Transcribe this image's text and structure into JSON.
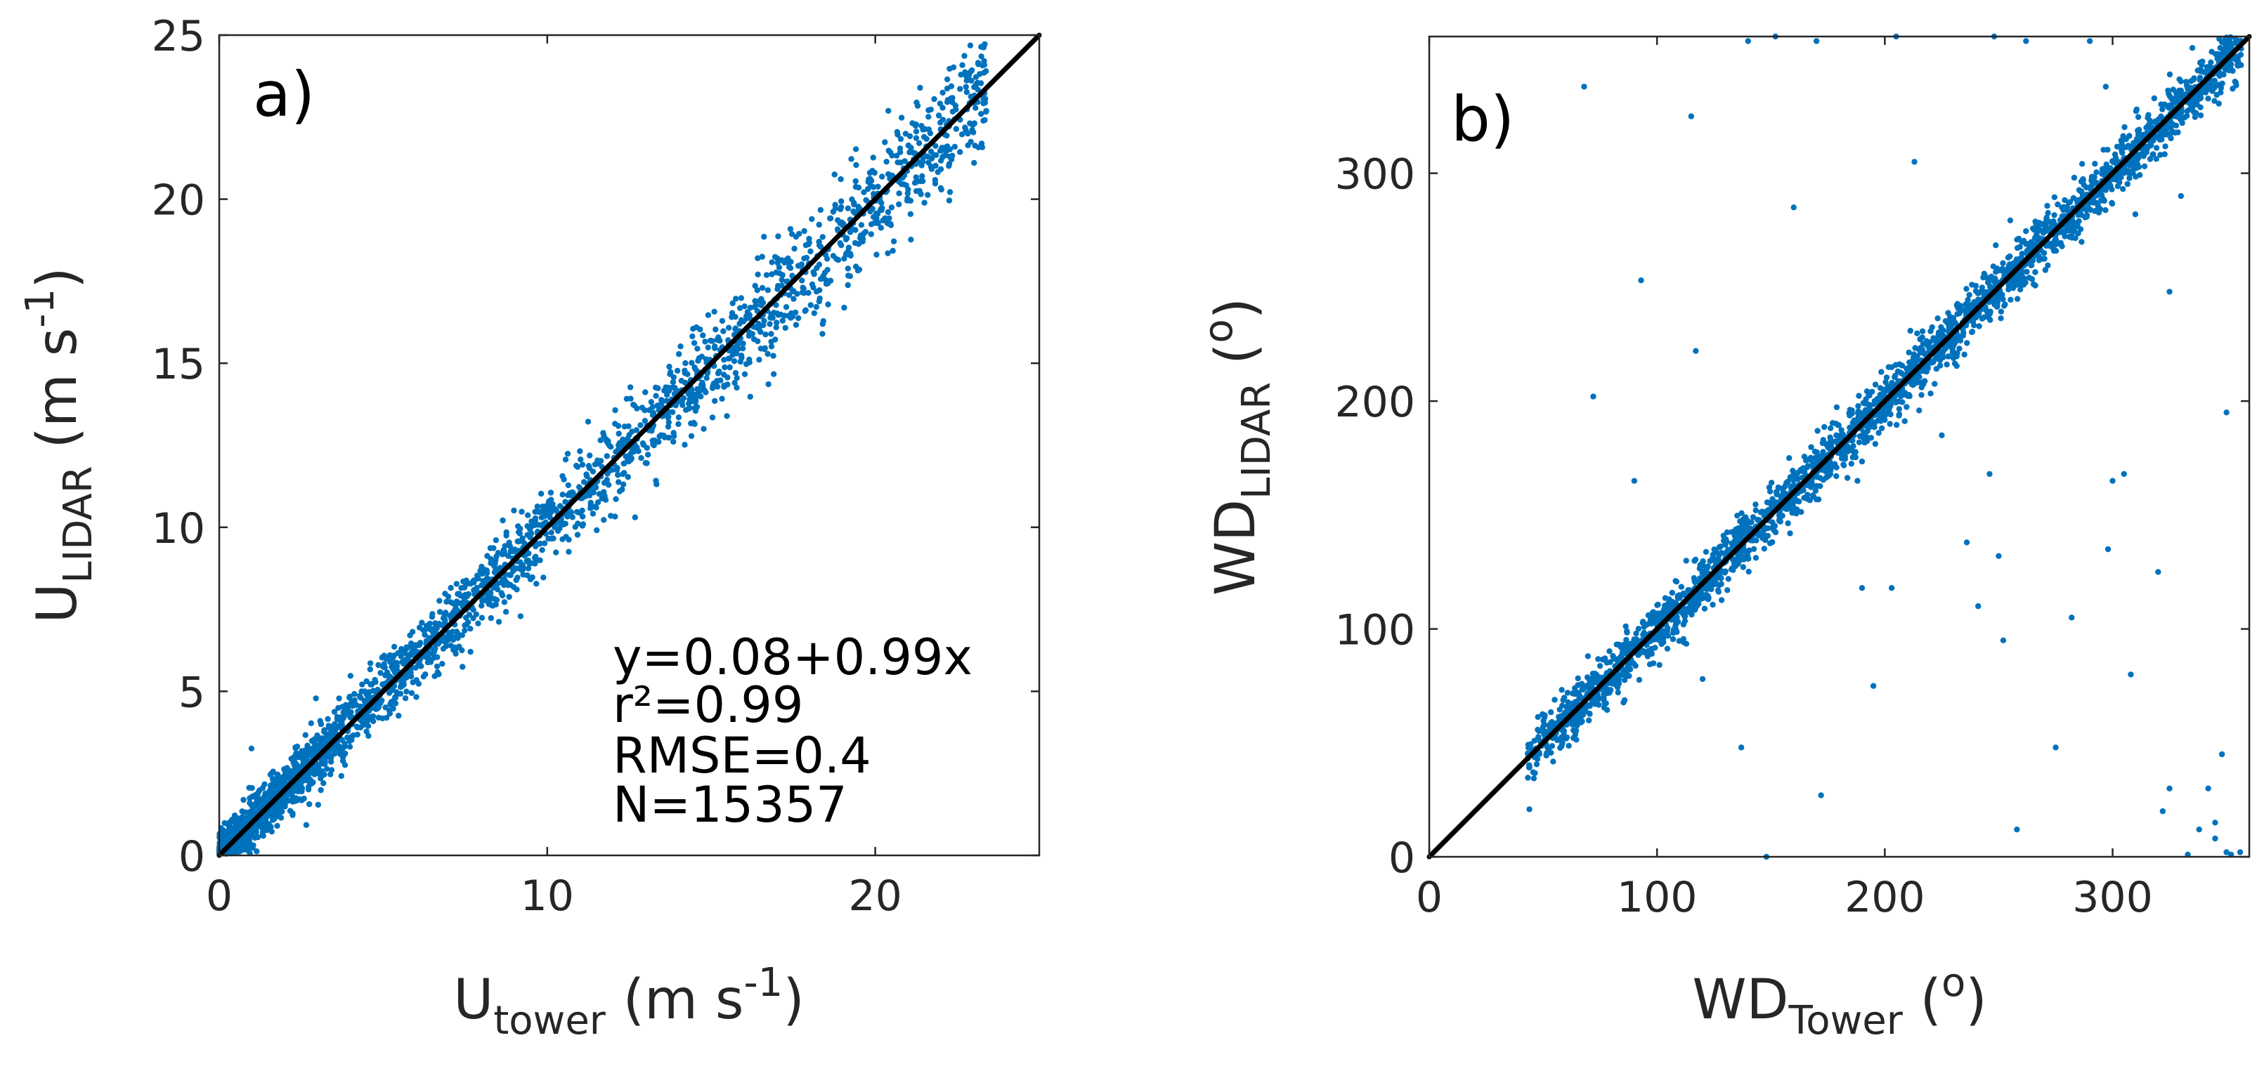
{
  "figure": {
    "marker_color": "#0072BD",
    "line_color": "#000000",
    "axis_color": "#262626"
  },
  "chart_data": [
    {
      "type": "scatter",
      "panel_label": "a)",
      "xlabel": {
        "main": "U",
        "sub": "tower",
        "unit_open": " (m s",
        "unit_sup": "-1",
        "unit_close": ")"
      },
      "ylabel": {
        "main": "U",
        "sub": "LIDAR",
        "unit_open": " (m s",
        "unit_sup": "-1",
        "unit_close": ")"
      },
      "xlim": [
        0,
        25
      ],
      "ylim": [
        0,
        25
      ],
      "xticks": [
        0,
        10,
        20
      ],
      "xtick_labels": [
        "0",
        "10",
        "20"
      ],
      "yticks": [
        0,
        5,
        10,
        15,
        20,
        25
      ],
      "ytick_labels": [
        "0",
        "5",
        "10",
        "15",
        "20",
        "25"
      ],
      "fit_line": {
        "x": [
          0,
          25
        ],
        "y": [
          0,
          25
        ]
      },
      "annotation_lines": [
        "y=0.08+0.99x",
        "r²=0.99",
        "RMSE=0.4",
        "N=15357"
      ],
      "n_points_rendered": 2600,
      "generator": {
        "kind": "speed",
        "max": 23.4,
        "mean_spread": 0.35,
        "outlier_fraction": 0.004
      }
    },
    {
      "type": "scatter",
      "panel_label": "b)",
      "xlabel": {
        "main": "WD",
        "sub": "Tower",
        "unit_open": " (",
        "unit_sup": "o",
        "unit_close": ")"
      },
      "ylabel": {
        "main": "WD",
        "sub": "LIDAR",
        "unit_open": " (",
        "unit_sup": "o",
        "unit_close": ")"
      },
      "xlim": [
        0,
        360
      ],
      "ylim": [
        0,
        360
      ],
      "xticks": [
        0,
        100,
        200,
        300
      ],
      "xtick_labels": [
        "0",
        "100",
        "200",
        "300"
      ],
      "yticks": [
        0,
        100,
        200,
        300
      ],
      "ytick_labels": [
        "0",
        "100",
        "200",
        "300"
      ],
      "fit_line": {
        "x": [
          0,
          360
        ],
        "y": [
          0,
          360
        ]
      },
      "n_points_rendered": 2600,
      "generator": {
        "kind": "direction",
        "min": 43,
        "max": 358,
        "mean_spread": 4.5
      },
      "outliers": [
        [
          68,
          338
        ],
        [
          115,
          325
        ],
        [
          140,
          358
        ],
        [
          152,
          360
        ],
        [
          160,
          285
        ],
        [
          170,
          358
        ],
        [
          205,
          360
        ],
        [
          248,
          360
        ],
        [
          262,
          358
        ],
        [
          290,
          358
        ],
        [
          335,
          355
        ],
        [
          213,
          305
        ],
        [
          72,
          202
        ],
        [
          90,
          165
        ],
        [
          93,
          253
        ],
        [
          117,
          222
        ],
        [
          158,
          175
        ],
        [
          172,
          27
        ],
        [
          195,
          75
        ],
        [
          190,
          118
        ],
        [
          225,
          185
        ],
        [
          236,
          138
        ],
        [
          241,
          110
        ],
        [
          246,
          168
        ],
        [
          250,
          132
        ],
        [
          252,
          95
        ],
        [
          258,
          12
        ],
        [
          275,
          48
        ],
        [
          282,
          105
        ],
        [
          298,
          135
        ],
        [
          300,
          165
        ],
        [
          305,
          168
        ],
        [
          308,
          80
        ],
        [
          320,
          125
        ],
        [
          325,
          248
        ],
        [
          330,
          290
        ],
        [
          342,
          30
        ],
        [
          348,
          45
        ],
        [
          350,
          195
        ],
        [
          325,
          30
        ],
        [
          322,
          20
        ],
        [
          338,
          12
        ],
        [
          345,
          8
        ],
        [
          350,
          2
        ],
        [
          333,
          1
        ],
        [
          345,
          15
        ],
        [
          352,
          1
        ],
        [
          356,
          2
        ],
        [
          148,
          0
        ],
        [
          137,
          48
        ],
        [
          203,
          118
        ],
        [
          188,
          165
        ],
        [
          120,
          78
        ],
        [
          310,
          282
        ],
        [
          297,
          338
        ]
      ]
    }
  ]
}
